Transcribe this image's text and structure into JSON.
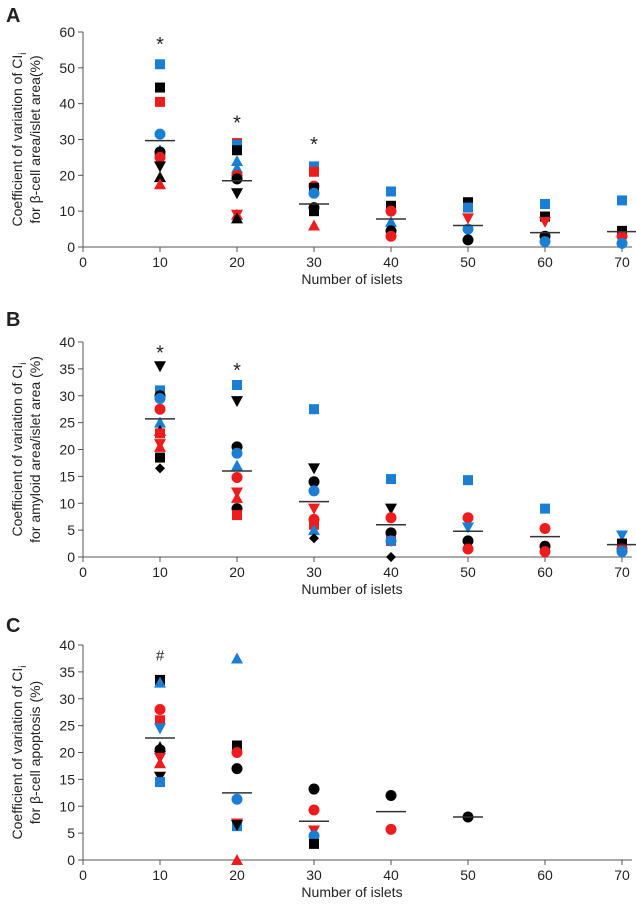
{
  "colors": {
    "black": "#000000",
    "red": "#ee1c1c",
    "blue": "#1a7fd4",
    "axis": "#555555"
  },
  "chart_data": [
    {
      "type": "scatter",
      "panel_label": "A",
      "ylabel_line1": "Coefficient of variation of CI",
      "ylabel_sub": "i",
      "ylabel_line2": "for β-cell area/islet area(%)",
      "xlabel": "Number of islets",
      "xlim": [
        0,
        70
      ],
      "ylim": [
        0,
        60
      ],
      "ystep": 10,
      "xticks": [
        "0",
        "10",
        "20",
        "30",
        "40",
        "50",
        "60",
        "70"
      ],
      "yticks": [
        "0",
        "10",
        "20",
        "30",
        "40",
        "50",
        "60"
      ],
      "annotations": [
        {
          "x": 10,
          "y": 57,
          "text": "*"
        },
        {
          "x": 20,
          "y": 35,
          "text": "*"
        },
        {
          "x": 30,
          "y": 29,
          "text": "*"
        }
      ],
      "means": [
        {
          "x": 10,
          "y": 29.7
        },
        {
          "x": 20,
          "y": 18.5
        },
        {
          "x": 30,
          "y": 12
        },
        {
          "x": 40,
          "y": 7.8
        },
        {
          "x": 50,
          "y": 6
        },
        {
          "x": 60,
          "y": 4
        },
        {
          "x": 70,
          "y": 4.3
        }
      ],
      "points": [
        {
          "x": 10,
          "y": 51,
          "s": "square",
          "c": "blue"
        },
        {
          "x": 10,
          "y": 44.5,
          "s": "square",
          "c": "black"
        },
        {
          "x": 10,
          "y": 40.5,
          "s": "square",
          "c": "red"
        },
        {
          "x": 10,
          "y": 31.5,
          "s": "circle",
          "c": "blue"
        },
        {
          "x": 10,
          "y": 27,
          "s": "triangle",
          "c": "blue"
        },
        {
          "x": 10,
          "y": 26.5,
          "s": "circle",
          "c": "black"
        },
        {
          "x": 10,
          "y": 25,
          "s": "circle",
          "c": "red"
        },
        {
          "x": 10,
          "y": 22.5,
          "s": "down",
          "c": "black"
        },
        {
          "x": 10,
          "y": 19.5,
          "s": "triangle",
          "c": "black"
        },
        {
          "x": 10,
          "y": 17.5,
          "s": "triangle",
          "c": "red"
        },
        {
          "x": 20,
          "y": 29,
          "s": "square",
          "c": "red"
        },
        {
          "x": 20,
          "y": 28.5,
          "s": "square",
          "c": "blue"
        },
        {
          "x": 20,
          "y": 27,
          "s": "square",
          "c": "black"
        },
        {
          "x": 20,
          "y": 24,
          "s": "triangle",
          "c": "blue"
        },
        {
          "x": 20,
          "y": 22,
          "s": "triangle",
          "c": "blue"
        },
        {
          "x": 20,
          "y": 20,
          "s": "circle",
          "c": "red"
        },
        {
          "x": 20,
          "y": 19,
          "s": "circle",
          "c": "blue"
        },
        {
          "x": 20,
          "y": 19,
          "s": "circle",
          "c": "black"
        },
        {
          "x": 20,
          "y": 15,
          "s": "down",
          "c": "black"
        },
        {
          "x": 20,
          "y": 9,
          "s": "down",
          "c": "red"
        },
        {
          "x": 20,
          "y": 9,
          "s": "triangle",
          "c": "red"
        },
        {
          "x": 20,
          "y": 8,
          "s": "triangle",
          "c": "black"
        },
        {
          "x": 30,
          "y": 22.5,
          "s": "square",
          "c": "blue"
        },
        {
          "x": 30,
          "y": 21,
          "s": "square",
          "c": "red"
        },
        {
          "x": 30,
          "y": 17,
          "s": "circle",
          "c": "red"
        },
        {
          "x": 30,
          "y": 16.5,
          "s": "square",
          "c": "black"
        },
        {
          "x": 30,
          "y": 15,
          "s": "circle",
          "c": "blue"
        },
        {
          "x": 30,
          "y": 11,
          "s": "circle",
          "c": "black"
        },
        {
          "x": 30,
          "y": 10,
          "s": "square",
          "c": "black"
        },
        {
          "x": 30,
          "y": 6,
          "s": "triangle",
          "c": "red"
        },
        {
          "x": 40,
          "y": 15.5,
          "s": "square",
          "c": "blue"
        },
        {
          "x": 40,
          "y": 11.5,
          "s": "square",
          "c": "black"
        },
        {
          "x": 40,
          "y": 10,
          "s": "circle",
          "c": "red"
        },
        {
          "x": 40,
          "y": 7,
          "s": "triangle",
          "c": "blue"
        },
        {
          "x": 40,
          "y": 4.5,
          "s": "circle",
          "c": "black"
        },
        {
          "x": 40,
          "y": 3,
          "s": "circle",
          "c": "red"
        },
        {
          "x": 50,
          "y": 12.5,
          "s": "square",
          "c": "black"
        },
        {
          "x": 50,
          "y": 11,
          "s": "square",
          "c": "blue"
        },
        {
          "x": 50,
          "y": 8,
          "s": "down",
          "c": "red"
        },
        {
          "x": 50,
          "y": 5,
          "s": "circle",
          "c": "blue"
        },
        {
          "x": 50,
          "y": 2,
          "s": "circle",
          "c": "black"
        },
        {
          "x": 60,
          "y": 12,
          "s": "square",
          "c": "blue"
        },
        {
          "x": 60,
          "y": 8.5,
          "s": "square",
          "c": "black"
        },
        {
          "x": 60,
          "y": 7,
          "s": "down",
          "c": "red"
        },
        {
          "x": 60,
          "y": 3,
          "s": "circle",
          "c": "black"
        },
        {
          "x": 60,
          "y": 1.5,
          "s": "circle",
          "c": "blue"
        },
        {
          "x": 70,
          "y": 13,
          "s": "square",
          "c": "blue"
        },
        {
          "x": 70,
          "y": 4.5,
          "s": "square",
          "c": "black"
        },
        {
          "x": 70,
          "y": 3,
          "s": "circle",
          "c": "red"
        },
        {
          "x": 70,
          "y": 1,
          "s": "circle",
          "c": "blue"
        }
      ]
    },
    {
      "type": "scatter",
      "panel_label": "B",
      "ylabel_line1": "Coefficient of variation of CI",
      "ylabel_sub": "i",
      "ylabel_line2": "for amyloid area/islet area (%)",
      "xlabel": "Number of islets",
      "xlim": [
        0,
        70
      ],
      "ylim": [
        0,
        40
      ],
      "ystep": 5,
      "xticks": [
        "0",
        "10",
        "20",
        "30",
        "40",
        "50",
        "60",
        "70"
      ],
      "yticks": [
        "0",
        "5",
        "10",
        "15",
        "20",
        "25",
        "30",
        "35",
        "40"
      ],
      "annotations": [
        {
          "x": 10,
          "y": 38.2,
          "text": "*"
        },
        {
          "x": 20,
          "y": 35,
          "text": "*"
        }
      ],
      "means": [
        {
          "x": 10,
          "y": 25.7
        },
        {
          "x": 20,
          "y": 16
        },
        {
          "x": 30,
          "y": 10.3
        },
        {
          "x": 40,
          "y": 6
        },
        {
          "x": 50,
          "y": 4.8
        },
        {
          "x": 60,
          "y": 3.8
        },
        {
          "x": 70,
          "y": 2.3
        }
      ],
      "points": [
        {
          "x": 10,
          "y": 35.5,
          "s": "down",
          "c": "black"
        },
        {
          "x": 10,
          "y": 31,
          "s": "square",
          "c": "blue"
        },
        {
          "x": 10,
          "y": 30,
          "s": "circle",
          "c": "black"
        },
        {
          "x": 10,
          "y": 29.5,
          "s": "circle",
          "c": "blue"
        },
        {
          "x": 10,
          "y": 27.5,
          "s": "circle",
          "c": "red"
        },
        {
          "x": 10,
          "y": 25,
          "s": "triangle",
          "c": "blue"
        },
        {
          "x": 10,
          "y": 23.5,
          "s": "triangle",
          "c": "black"
        },
        {
          "x": 10,
          "y": 23,
          "s": "square",
          "c": "red"
        },
        {
          "x": 10,
          "y": 21,
          "s": "down",
          "c": "red"
        },
        {
          "x": 10,
          "y": 20.5,
          "s": "triangle",
          "c": "red"
        },
        {
          "x": 10,
          "y": 18.5,
          "s": "square",
          "c": "black"
        },
        {
          "x": 10,
          "y": 16.5,
          "s": "diamond",
          "c": "black"
        },
        {
          "x": 20,
          "y": 32,
          "s": "square",
          "c": "blue"
        },
        {
          "x": 20,
          "y": 29,
          "s": "down",
          "c": "black"
        },
        {
          "x": 20,
          "y": 20.5,
          "s": "circle",
          "c": "black"
        },
        {
          "x": 20,
          "y": 19.3,
          "s": "circle",
          "c": "blue"
        },
        {
          "x": 20,
          "y": 17,
          "s": "triangle",
          "c": "blue"
        },
        {
          "x": 20,
          "y": 14.8,
          "s": "circle",
          "c": "red"
        },
        {
          "x": 20,
          "y": 12,
          "s": "down",
          "c": "red"
        },
        {
          "x": 20,
          "y": 11,
          "s": "triangle",
          "c": "red"
        },
        {
          "x": 20,
          "y": 9,
          "s": "circle",
          "c": "black"
        },
        {
          "x": 20,
          "y": 8.5,
          "s": "square",
          "c": "black"
        },
        {
          "x": 20,
          "y": 7.8,
          "s": "square",
          "c": "red"
        },
        {
          "x": 30,
          "y": 27.5,
          "s": "square",
          "c": "blue"
        },
        {
          "x": 30,
          "y": 16.5,
          "s": "down",
          "c": "black"
        },
        {
          "x": 30,
          "y": 14,
          "s": "circle",
          "c": "black"
        },
        {
          "x": 30,
          "y": 12.3,
          "s": "circle",
          "c": "blue"
        },
        {
          "x": 30,
          "y": 9,
          "s": "down",
          "c": "red"
        },
        {
          "x": 30,
          "y": 7,
          "s": "circle",
          "c": "red"
        },
        {
          "x": 30,
          "y": 6,
          "s": "square",
          "c": "red"
        },
        {
          "x": 30,
          "y": 5,
          "s": "triangle",
          "c": "blue"
        },
        {
          "x": 30,
          "y": 3.5,
          "s": "diamond",
          "c": "black"
        },
        {
          "x": 40,
          "y": 14.5,
          "s": "square",
          "c": "blue"
        },
        {
          "x": 40,
          "y": 9,
          "s": "down",
          "c": "black"
        },
        {
          "x": 40,
          "y": 7.3,
          "s": "circle",
          "c": "red"
        },
        {
          "x": 40,
          "y": 4.5,
          "s": "circle",
          "c": "black"
        },
        {
          "x": 40,
          "y": 3,
          "s": "square",
          "c": "red"
        },
        {
          "x": 40,
          "y": 3,
          "s": "circle",
          "c": "blue"
        },
        {
          "x": 40,
          "y": 0,
          "s": "diamond",
          "c": "black"
        },
        {
          "x": 50,
          "y": 14.3,
          "s": "square",
          "c": "blue"
        },
        {
          "x": 50,
          "y": 7.3,
          "s": "circle",
          "c": "red"
        },
        {
          "x": 50,
          "y": 5.5,
          "s": "down",
          "c": "blue"
        },
        {
          "x": 50,
          "y": 3,
          "s": "circle",
          "c": "black"
        },
        {
          "x": 50,
          "y": 1.5,
          "s": "circle",
          "c": "red"
        },
        {
          "x": 60,
          "y": 9,
          "s": "square",
          "c": "blue"
        },
        {
          "x": 60,
          "y": 5.3,
          "s": "circle",
          "c": "red"
        },
        {
          "x": 60,
          "y": 2,
          "s": "circle",
          "c": "black"
        },
        {
          "x": 60,
          "y": 1,
          "s": "circle",
          "c": "red"
        },
        {
          "x": 70,
          "y": 4,
          "s": "down",
          "c": "blue"
        },
        {
          "x": 70,
          "y": 2.5,
          "s": "square",
          "c": "black"
        },
        {
          "x": 70,
          "y": 1.5,
          "s": "circle",
          "c": "red"
        },
        {
          "x": 70,
          "y": 1,
          "s": "circle",
          "c": "blue"
        }
      ]
    },
    {
      "type": "scatter",
      "panel_label": "C",
      "ylabel_line1": "Coefficient of variation of CI",
      "ylabel_sub": "i",
      "ylabel_line2": "for β-cell apoptosis (%)",
      "xlabel": "Number of islets",
      "xlim": [
        0,
        70
      ],
      "ylim": [
        0,
        40
      ],
      "ystep": 5,
      "xticks": [
        "0",
        "10",
        "20",
        "30",
        "40",
        "50",
        "60",
        "70"
      ],
      "yticks": [
        "0",
        "5",
        "10",
        "15",
        "20",
        "25",
        "30",
        "35",
        "40"
      ],
      "annotations": [
        {
          "x": 10,
          "y": 38.6,
          "text": "#"
        }
      ],
      "means": [
        {
          "x": 10,
          "y": 22.7
        },
        {
          "x": 20,
          "y": 12.5
        },
        {
          "x": 30,
          "y": 7.2
        },
        {
          "x": 40,
          "y": 9
        },
        {
          "x": 50,
          "y": 8
        }
      ],
      "points": [
        {
          "x": 10,
          "y": 33.5,
          "s": "square",
          "c": "black"
        },
        {
          "x": 10,
          "y": 33,
          "s": "triangle",
          "c": "blue"
        },
        {
          "x": 10,
          "y": 28,
          "s": "circle",
          "c": "red"
        },
        {
          "x": 10,
          "y": 26,
          "s": "square",
          "c": "red"
        },
        {
          "x": 10,
          "y": 24.5,
          "s": "down",
          "c": "blue"
        },
        {
          "x": 10,
          "y": 21,
          "s": "triangle",
          "c": "black"
        },
        {
          "x": 10,
          "y": 20.5,
          "s": "circle",
          "c": "black"
        },
        {
          "x": 10,
          "y": 19,
          "s": "down",
          "c": "red"
        },
        {
          "x": 10,
          "y": 18,
          "s": "triangle",
          "c": "red"
        },
        {
          "x": 10,
          "y": 15.5,
          "s": "down",
          "c": "black"
        },
        {
          "x": 10,
          "y": 14.5,
          "s": "square",
          "c": "blue"
        },
        {
          "x": 20,
          "y": 37.5,
          "s": "triangle",
          "c": "blue"
        },
        {
          "x": 20,
          "y": 21.3,
          "s": "square",
          "c": "black"
        },
        {
          "x": 20,
          "y": 20,
          "s": "circle",
          "c": "red"
        },
        {
          "x": 20,
          "y": 17,
          "s": "circle",
          "c": "black"
        },
        {
          "x": 20,
          "y": 11.3,
          "s": "circle",
          "c": "blue"
        },
        {
          "x": 20,
          "y": 6.8,
          "s": "down",
          "c": "red"
        },
        {
          "x": 20,
          "y": 6.3,
          "s": "square",
          "c": "blue"
        },
        {
          "x": 20,
          "y": 6.5,
          "s": "down",
          "c": "black"
        },
        {
          "x": 20,
          "y": 0,
          "s": "triangle",
          "c": "red"
        },
        {
          "x": 30,
          "y": 13.2,
          "s": "circle",
          "c": "black"
        },
        {
          "x": 30,
          "y": 9.3,
          "s": "circle",
          "c": "red"
        },
        {
          "x": 30,
          "y": 5.5,
          "s": "down",
          "c": "red"
        },
        {
          "x": 30,
          "y": 4.5,
          "s": "circle",
          "c": "blue"
        },
        {
          "x": 30,
          "y": 3,
          "s": "square",
          "c": "black"
        },
        {
          "x": 40,
          "y": 12,
          "s": "circle",
          "c": "black"
        },
        {
          "x": 40,
          "y": 5.7,
          "s": "circle",
          "c": "red"
        },
        {
          "x": 50,
          "y": 8,
          "s": "circle",
          "c": "black"
        }
      ]
    }
  ]
}
